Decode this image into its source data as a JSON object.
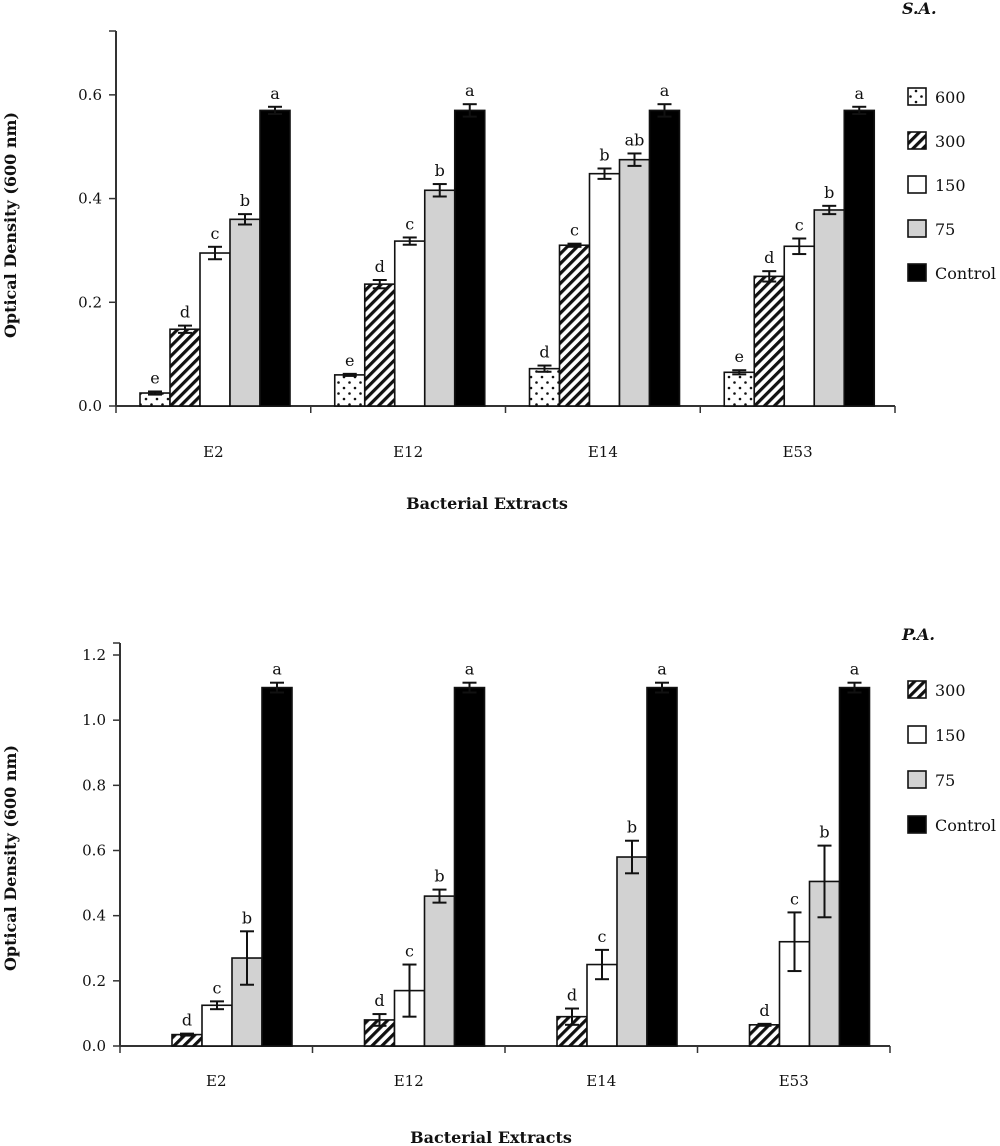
{
  "chart_data": [
    {
      "type": "bar",
      "title": "S.A.",
      "xlabel": "Bacterial Extracts",
      "ylabel": "Optical Density (600 nm)",
      "ylim": [
        0,
        0.7
      ],
      "yticks": [
        "0.0",
        "0.2",
        "0.4",
        "0.6"
      ],
      "legend_position": "right",
      "grid": false,
      "categories": [
        "E2",
        "E12",
        "E14",
        "E53"
      ],
      "series": [
        {
          "name": "600",
          "pattern": "dots",
          "values": [
            0.025,
            0.06,
            0.072,
            0.065
          ],
          "errors": [
            0.003,
            0.002,
            0.006,
            0.004
          ],
          "letters": [
            "e",
            "e",
            "d",
            "e"
          ]
        },
        {
          "name": "300",
          "pattern": "hatch",
          "values": [
            0.148,
            0.235,
            0.31,
            0.25
          ],
          "errors": [
            0.007,
            0.008,
            0.003,
            0.01
          ],
          "letters": [
            "d",
            "d",
            "c",
            "d"
          ]
        },
        {
          "name": "150",
          "pattern": "white",
          "values": [
            0.295,
            0.318,
            0.448,
            0.308
          ],
          "errors": [
            0.012,
            0.007,
            0.01,
            0.015
          ],
          "letters": [
            "c",
            "c",
            "b",
            "c"
          ]
        },
        {
          "name": "75",
          "pattern": "gray",
          "values": [
            0.36,
            0.416,
            0.475,
            0.378
          ],
          "errors": [
            0.01,
            0.012,
            0.012,
            0.008
          ],
          "letters": [
            "b",
            "b",
            "ab",
            "b"
          ]
        },
        {
          "name": "Control",
          "pattern": "black",
          "values": [
            0.57,
            0.57,
            0.57,
            0.57
          ],
          "errors": [
            0.007,
            0.012,
            0.012,
            0.007
          ],
          "letters": [
            "a",
            "a",
            "a",
            "a"
          ]
        }
      ]
    },
    {
      "type": "bar",
      "title": "P.A.",
      "xlabel": "Bacterial Extracts",
      "ylabel": "Optical Density (600 nm)",
      "ylim": [
        0,
        1.2
      ],
      "yticks": [
        "0.0",
        "0.2",
        "0.4",
        "0.6",
        "0.8",
        "1.0",
        "1.2"
      ],
      "legend_position": "right",
      "grid": false,
      "categories": [
        "E2",
        "E12",
        "E14",
        "E53"
      ],
      "series": [
        {
          "name": "300",
          "pattern": "hatch",
          "values": [
            0.035,
            0.08,
            0.09,
            0.065
          ],
          "errors": [
            0.003,
            0.018,
            0.025,
            0.003
          ],
          "letters": [
            "d",
            "d",
            "d",
            "d"
          ]
        },
        {
          "name": "150",
          "pattern": "white",
          "values": [
            0.125,
            0.17,
            0.25,
            0.32
          ],
          "errors": [
            0.012,
            0.08,
            0.045,
            0.09
          ],
          "letters": [
            "c",
            "c",
            "c",
            "c"
          ]
        },
        {
          "name": "75",
          "pattern": "gray",
          "values": [
            0.27,
            0.46,
            0.58,
            0.505
          ],
          "errors": [
            0.082,
            0.02,
            0.05,
            0.11
          ],
          "letters": [
            "b",
            "b",
            "b",
            "b"
          ]
        },
        {
          "name": "Control",
          "pattern": "black",
          "values": [
            1.1,
            1.1,
            1.1,
            1.1
          ],
          "errors": [
            0.015,
            0.015,
            0.015,
            0.015
          ],
          "letters": [
            "a",
            "a",
            "a",
            "a"
          ]
        }
      ]
    }
  ],
  "colors": {
    "bar_black": "#000000",
    "bar_gray": "#d2d2d2",
    "bar_white": "#ffffff",
    "axis": "#333333"
  }
}
